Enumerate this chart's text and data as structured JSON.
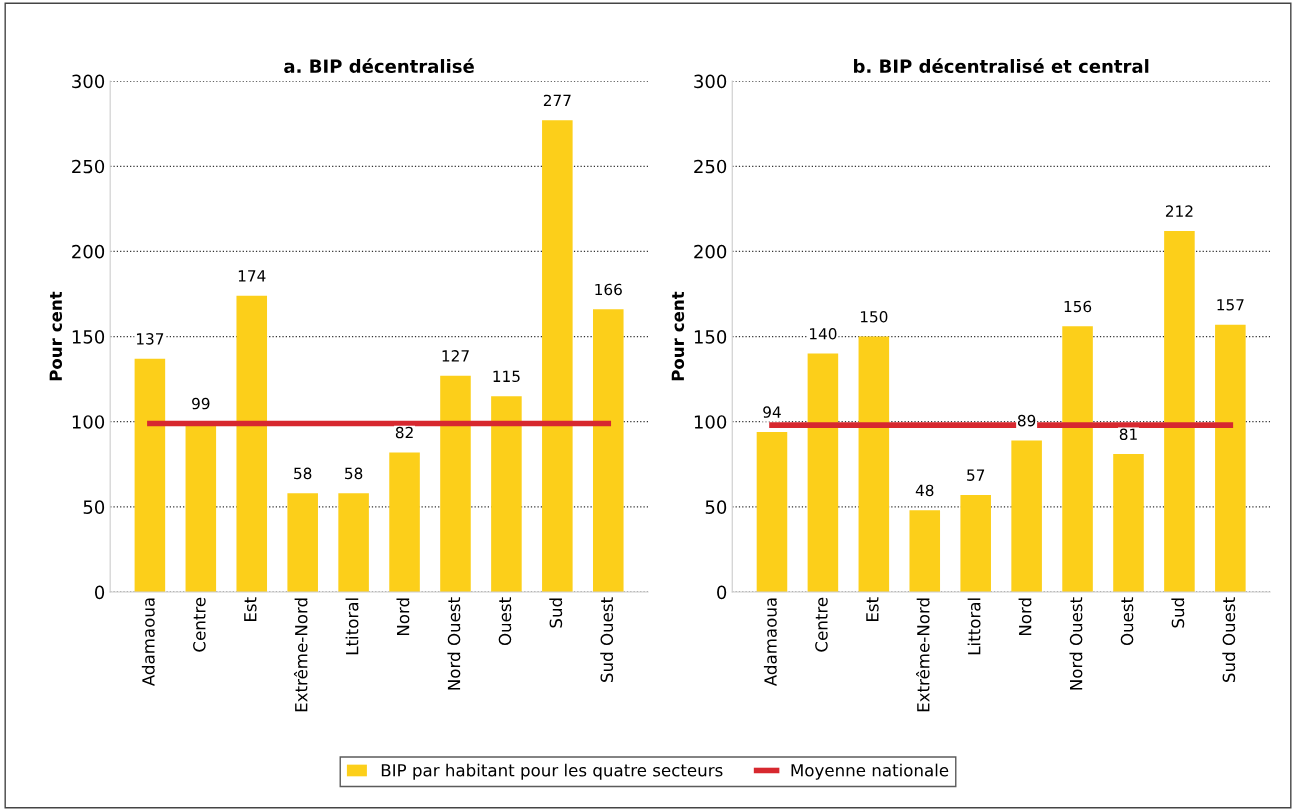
{
  "chart_data": [
    {
      "type": "bar",
      "title": "a. BIP décentralisé",
      "ylabel": "Pour cent",
      "categories": [
        "Adamaoua",
        "Centre",
        "Est",
        "Extrême-Nord",
        "Ltitoral",
        "Nord",
        "Nord Ouest",
        "Ouest",
        "Sud",
        "Sud Ouest"
      ],
      "series": [
        {
          "name": "BIP par habitant pour les quatre secteurs",
          "color": "#fccf1a",
          "values": [
            137,
            99,
            174,
            58,
            58,
            82,
            127,
            115,
            277,
            166
          ]
        }
      ],
      "ref_lines": [
        {
          "axis": "y",
          "value": 99,
          "label": "Moyenne nationale",
          "color": "#d7282f"
        }
      ],
      "data_labels": true,
      "ylim": [
        0,
        300
      ],
      "yticks": [
        0,
        50,
        100,
        150,
        200,
        250,
        300
      ],
      "grid": "y",
      "legend": "bottom"
    },
    {
      "type": "bar",
      "title": "b. BIP décentralisé et central",
      "ylabel": "Pour cent",
      "categories": [
        "Adamaoua",
        "Centre",
        "Est",
        "Extrême-Nord",
        "Littoral",
        "Nord",
        "Nord Ouest",
        "Ouest",
        "Sud",
        "Sud Ouest"
      ],
      "series": [
        {
          "color": "#fccf1a",
          "values": [
            94,
            140,
            150,
            48,
            57,
            89,
            156,
            81,
            212,
            157
          ]
        }
      ],
      "ref_lines": [
        {
          "axis": "y",
          "value": 98,
          "color": "#d7282f"
        }
      ],
      "data_labels": true,
      "ylim": [
        0,
        300
      ],
      "yticks": [
        0,
        50,
        100,
        150,
        200,
        250,
        300
      ],
      "grid": "y"
    }
  ]
}
